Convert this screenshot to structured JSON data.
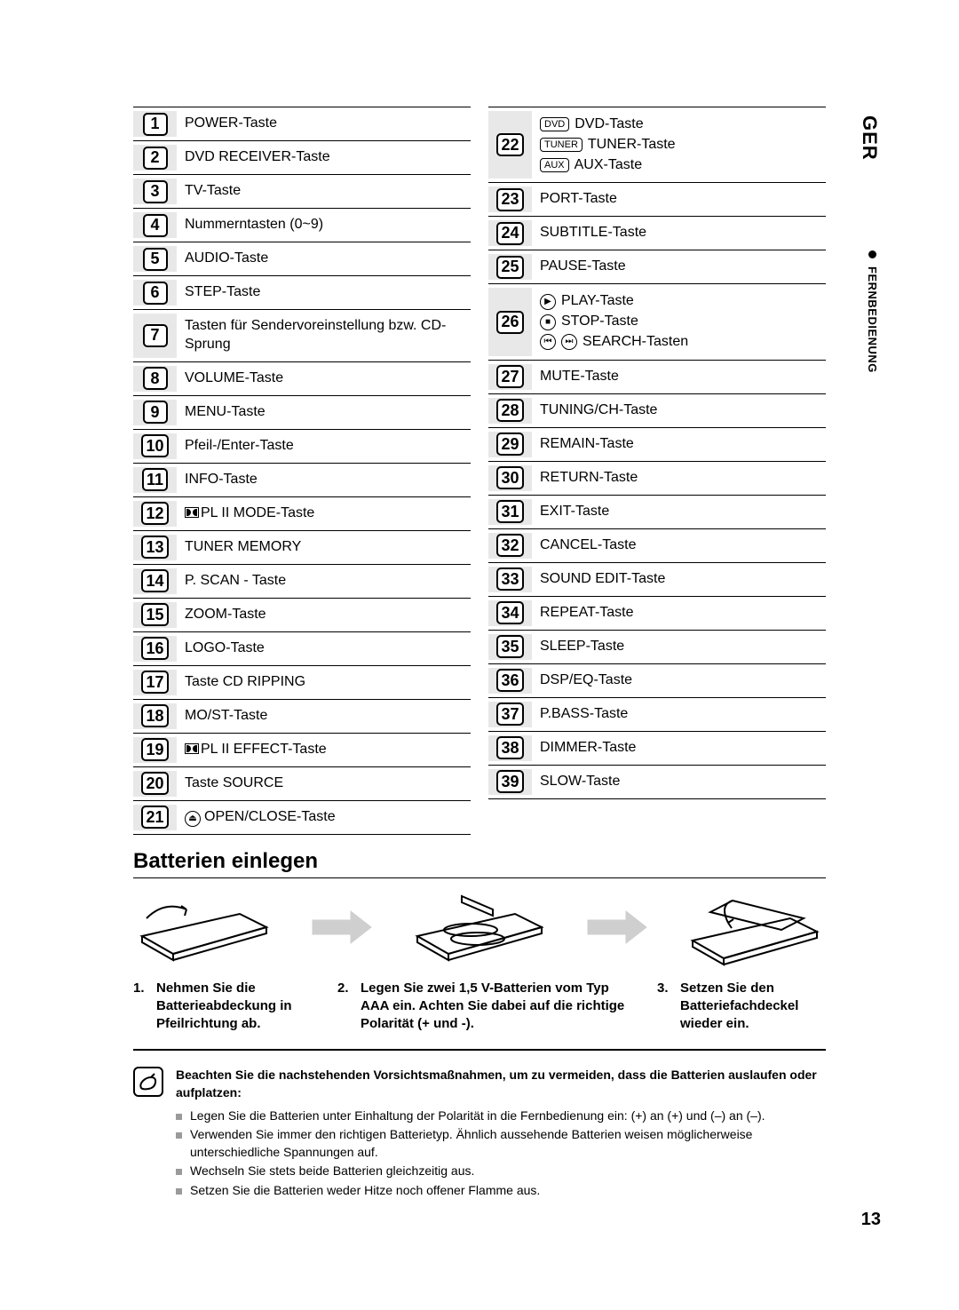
{
  "lang_tab": "GER",
  "section_tab": "FERNBEDIENUNG",
  "page_number": "13",
  "left": [
    {
      "n": "1",
      "label": "POWER-Taste"
    },
    {
      "n": "2",
      "label": "DVD RECEIVER-Taste"
    },
    {
      "n": "3",
      "label": "TV-Taste"
    },
    {
      "n": "4",
      "label": "Nummerntasten (0~9)"
    },
    {
      "n": "5",
      "label": "AUDIO-Taste"
    },
    {
      "n": "6",
      "label": "STEP-Taste"
    },
    {
      "n": "7",
      "label": "Tasten für Sendervoreinstellung bzw. CD-Sprung"
    },
    {
      "n": "8",
      "label": "VOLUME-Taste"
    },
    {
      "n": "9",
      "label": "MENU-Taste"
    },
    {
      "n": "10",
      "label": "Pfeil-/Enter-Taste"
    },
    {
      "n": "11",
      "label": "INFO-Taste"
    },
    {
      "n": "12",
      "label": "PL II MODE-Taste",
      "dolby": true
    },
    {
      "n": "13",
      "label": "TUNER MEMORY"
    },
    {
      "n": "14",
      "label": "P. SCAN - Taste"
    },
    {
      "n": "15",
      "label": "ZOOM-Taste"
    },
    {
      "n": "16",
      "label": "LOGO-Taste"
    },
    {
      "n": "17",
      "label": "Taste CD RIPPING"
    },
    {
      "n": "18",
      "label": "MO/ST-Taste"
    },
    {
      "n": "19",
      "label": "PL II EFFECT-Taste",
      "dolby": true
    },
    {
      "n": "20",
      "label": "Taste SOURCE"
    },
    {
      "n": "21",
      "label": "OPEN/CLOSE-Taste",
      "sym": "⏏"
    }
  ],
  "right": [
    {
      "n": "22",
      "multi": [
        {
          "badge": "DVD",
          "text": "DVD-Taste"
        },
        {
          "badge": "TUNER",
          "text": "TUNER-Taste"
        },
        {
          "badge": "AUX",
          "text": "AUX-Taste"
        }
      ]
    },
    {
      "n": "23",
      "label": "PORT-Taste"
    },
    {
      "n": "24",
      "label": "SUBTITLE-Taste"
    },
    {
      "n": "25",
      "label": "PAUSE-Taste"
    },
    {
      "n": "26",
      "multi": [
        {
          "sym": "▶",
          "text": "PLAY-Taste"
        },
        {
          "sym": "■",
          "text": "STOP-Taste"
        },
        {
          "sym2": [
            "⏮",
            "⏭"
          ],
          "text": "SEARCH-Tasten"
        }
      ]
    },
    {
      "n": "27",
      "label": "MUTE-Taste"
    },
    {
      "n": "28",
      "label": "TUNING/CH-Taste"
    },
    {
      "n": "29",
      "label": "REMAIN-Taste"
    },
    {
      "n": "30",
      "label": "RETURN-Taste"
    },
    {
      "n": "31",
      "label": "EXIT-Taste"
    },
    {
      "n": "32",
      "label": "CANCEL-Taste"
    },
    {
      "n": "33",
      "label": "SOUND EDIT-Taste"
    },
    {
      "n": "34",
      "label": "REPEAT-Taste"
    },
    {
      "n": "35",
      "label": "SLEEP-Taste"
    },
    {
      "n": "36",
      "label": "DSP/EQ-Taste"
    },
    {
      "n": "37",
      "label": "P.BASS-Taste"
    },
    {
      "n": "38",
      "label": "DIMMER-Taste"
    },
    {
      "n": "39",
      "label": "SLOW-Taste"
    }
  ],
  "battery_title": "Batterien einlegen",
  "steps": [
    {
      "n": "1.",
      "text": "Nehmen Sie die Batterieabdeckung in Pfeilrichtung ab."
    },
    {
      "n": "2.",
      "text": "Legen Sie zwei 1,5 V-Batterien vom Typ AAA ein. Achten Sie dabei auf die richtige Polarität (+ und -)."
    },
    {
      "n": "3.",
      "text": "Setzen Sie den Batteriefachdeckel wieder ein."
    }
  ],
  "note_intro": "Beachten Sie die nachstehenden Vorsichtsmaßnahmen, um zu vermeiden, dass die Batterien auslaufen oder aufplatzen:",
  "notes": [
    "Legen Sie die Batterien unter Einhaltung der Polarität in die Fernbedienung ein: (+) an (+) und (–) an (–).",
    "Verwenden Sie immer den richtigen Batterietyp. Ähnlich aussehende Batterien weisen möglicherweise unterschiedliche Spannungen auf.",
    "Wechseln Sie stets beide Batterien gleichzeitig aus.",
    "Setzen Sie die Batterien weder Hitze noch offener Flamme aus."
  ],
  "colors": {
    "numcell_bg": "#e8e8e8",
    "text": "#000000",
    "bullet": "#9a9a9a"
  }
}
